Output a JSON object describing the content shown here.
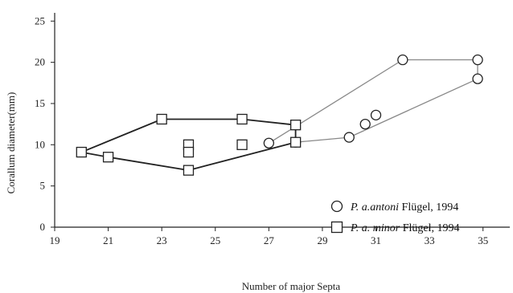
{
  "chart_data": {
    "type": "scatter",
    "xlabel": "Number of major Septa",
    "ylabel": "Corallum diameter(mm)",
    "xlim": [
      19,
      36
    ],
    "ylim": [
      0,
      26
    ],
    "x_ticks": [
      19,
      21,
      23,
      25,
      27,
      29,
      31,
      33,
      35
    ],
    "y_ticks": [
      0,
      5,
      10,
      15,
      20,
      25
    ],
    "grid": false,
    "legend_position": "bottom-right",
    "series": [
      {
        "marker": "circle",
        "legend_italic": "P. a.antoni",
        "legend_rest": " Flügel, 1994",
        "color": "#888888",
        "points": [
          {
            "x": 27,
            "y": 10.2
          },
          {
            "x": 28,
            "y": 10.3
          },
          {
            "x": 30,
            "y": 10.9
          },
          {
            "x": 30.6,
            "y": 12.5
          },
          {
            "x": 31,
            "y": 13.6
          },
          {
            "x": 32,
            "y": 20.3
          },
          {
            "x": 34.8,
            "y": 20.3
          },
          {
            "x": 34.8,
            "y": 18.0
          }
        ],
        "hull": [
          {
            "x": 27,
            "y": 10.2
          },
          {
            "x": 32,
            "y": 20.3
          },
          {
            "x": 34.8,
            "y": 20.3
          },
          {
            "x": 34.8,
            "y": 18.0
          },
          {
            "x": 30,
            "y": 10.9
          },
          {
            "x": 28,
            "y": 10.3
          }
        ]
      },
      {
        "marker": "square",
        "legend_italic": "P. a. minor",
        "legend_rest": " Flügel, 1994",
        "color": "#222222",
        "points": [
          {
            "x": 20,
            "y": 9.1
          },
          {
            "x": 21,
            "y": 8.5
          },
          {
            "x": 23,
            "y": 13.1
          },
          {
            "x": 24,
            "y": 10.0
          },
          {
            "x": 24,
            "y": 9.1
          },
          {
            "x": 24,
            "y": 6.9
          },
          {
            "x": 26,
            "y": 13.1
          },
          {
            "x": 26,
            "y": 10.0
          },
          {
            "x": 28,
            "y": 12.4
          },
          {
            "x": 28,
            "y": 10.3
          }
        ],
        "hull": [
          {
            "x": 20,
            "y": 9.1
          },
          {
            "x": 23,
            "y": 13.1
          },
          {
            "x": 26,
            "y": 13.1
          },
          {
            "x": 28,
            "y": 12.4
          },
          {
            "x": 28,
            "y": 10.3
          },
          {
            "x": 24,
            "y": 6.9
          },
          {
            "x": 21,
            "y": 8.5
          },
          {
            "x": 20,
            "y": 9.1
          }
        ]
      }
    ]
  }
}
